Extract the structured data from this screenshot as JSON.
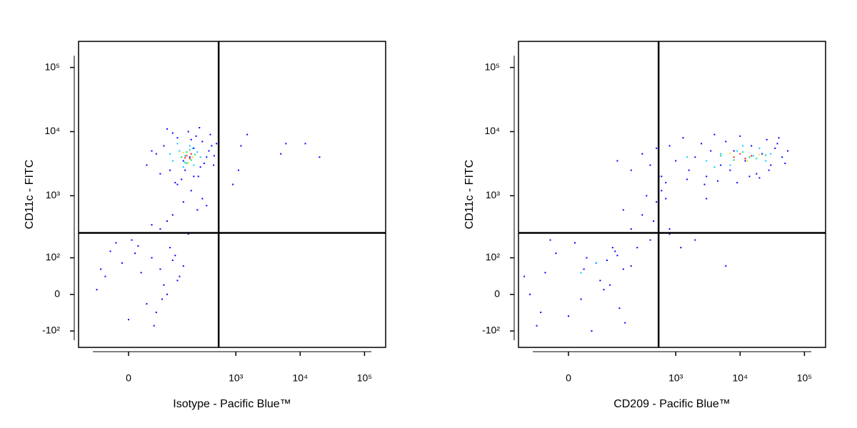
{
  "chart_data": [
    {
      "type": "scatter",
      "xlabel": "Isotype - Pacific Blue™",
      "ylabel": "CD11c - FITC",
      "xscale": "biexponential",
      "yscale": "biexponential",
      "xlim": [
        -125,
        213000
      ],
      "ylim": [
        -190,
        255000
      ],
      "xticks": [
        0,
        {
          "value": 1000,
          "label": "10³"
        },
        {
          "value": 10000,
          "label": "10⁴"
        },
        {
          "value": 100000,
          "label": "10⁵"
        }
      ],
      "yticks": [
        {
          "value": -100,
          "label": "-10²"
        },
        0,
        {
          "value": 100,
          "label": "10²"
        },
        {
          "value": 1000,
          "label": "10³"
        },
        {
          "value": 10000,
          "label": "10⁴"
        },
        {
          "value": 100000,
          "label": "10⁵"
        }
      ],
      "gates": {
        "x": 540,
        "y": 260
      },
      "series": [
        {
          "color": "#0000ff",
          "x": [
            -40,
            -10,
            10,
            30,
            60,
            90,
            120,
            -60,
            0,
            40,
            80,
            150,
            -20,
            20,
            50,
            100,
            -30,
            70,
            110,
            5,
            45,
            -50,
            130,
            15,
            65,
            60,
            100,
            150,
            200,
            250,
            80,
            300,
            120,
            180,
            220,
            40,
            350,
            30,
            50,
            70,
            90,
            120,
            150,
            180,
            220,
            260,
            300,
            350,
            400,
            450,
            500,
            60,
            100,
            140,
            200,
            280,
            380,
            80,
            160,
            240,
            320,
            420,
            40,
            110,
            190,
            270,
            460,
            1200,
            1500,
            5000,
            6000,
            12000,
            20000,
            900,
            1100
          ],
          "y": [
            40,
            80,
            120,
            -20,
            60,
            150,
            30,
            10,
            -60,
            100,
            0,
            70,
            180,
            50,
            -40,
            90,
            130,
            20,
            110,
            200,
            -80,
            60,
            40,
            160,
            -10,
            300,
            500,
            800,
            1200,
            600,
            400,
            900,
            1500,
            250,
            2000,
            350,
            700,
            3000,
            4500,
            6000,
            2500,
            8000,
            3500,
            10000,
            5500,
            2000,
            7000,
            4000,
            9000,
            3000,
            6500,
            2200,
            9500,
            1800,
            7500,
            2800,
            5000,
            11000,
            2500,
            8500,
            3200,
            6000,
            5000,
            1600,
            4000,
            11500,
            4200,
            6000,
            9000,
            4500,
            6500,
            6500,
            4000,
            1500,
            2500
          ]
        },
        {
          "color": "#00c8ff",
          "x": [
            100,
            130,
            160,
            190,
            220,
            250,
            120,
            170,
            210,
            280,
            90,
            150
          ],
          "y": [
            3500,
            5000,
            4200,
            6000,
            3000,
            4800,
            6500,
            3200,
            5500,
            4000,
            4500,
            2800
          ]
        },
        {
          "color": "#00e070",
          "x": [
            140,
            170,
            200,
            230,
            160,
            190
          ],
          "y": [
            4000,
            4800,
            3600,
            4400,
            3300,
            5200
          ]
        },
        {
          "color": "#ffe000",
          "x": [
            150,
            210,
            180
          ],
          "y": [
            4700,
            4000,
            3300
          ]
        },
        {
          "color": "#ff2000",
          "x": [
            170,
            190,
            160,
            200
          ],
          "y": [
            4200,
            3800,
            3900,
            4500
          ]
        }
      ]
    },
    {
      "type": "scatter",
      "xlabel": "CD209 - Pacific Blue™",
      "ylabel": "CD11c - FITC",
      "xscale": "biexponential",
      "yscale": "biexponential",
      "xlim": [
        -125,
        213000
      ],
      "ylim": [
        -190,
        255000
      ],
      "xticks": [
        0,
        {
          "value": 1000,
          "label": "10³"
        },
        {
          "value": 10000,
          "label": "10⁴"
        },
        {
          "value": 100000,
          "label": "10⁵"
        }
      ],
      "yticks": [
        {
          "value": -100,
          "label": "-10²"
        },
        0,
        {
          "value": 100,
          "label": "10²"
        },
        {
          "value": 1000,
          "label": "10³"
        },
        {
          "value": 10000,
          "label": "10⁴"
        },
        {
          "value": 100000,
          "label": "10⁵"
        }
      ],
      "gates": {
        "x": 540,
        "y": 260
      },
      "series": [
        {
          "color": "#0000ff",
          "x": [
            -80,
            -40,
            0,
            30,
            60,
            100,
            150,
            -60,
            -20,
            20,
            50,
            90,
            130,
            -100,
            10,
            40,
            80,
            120,
            -30,
            70,
            200,
            -50,
            25,
            110,
            160,
            200,
            300,
            400,
            500,
            600,
            250,
            350,
            450,
            150,
            550,
            700,
            800,
            120,
            200,
            300,
            400,
            500,
            600,
            800,
            1000,
            1300,
            1600,
            2000,
            2500,
            3000,
            3500,
            4000,
            5000,
            6000,
            7000,
            8000,
            10000,
            12000,
            15000,
            18000,
            22000,
            26000,
            30000,
            35000,
            40000,
            45000,
            50000,
            700,
            1500,
            2800,
            4500,
            9000,
            14000,
            20000,
            28000,
            38000,
            55000,
            1200,
            2000,
            6000,
            800,
            3000
          ],
          "y": [
            0,
            50,
            -50,
            100,
            30,
            150,
            60,
            -80,
            120,
            -10,
            80,
            20,
            -30,
            40,
            180,
            -100,
            90,
            110,
            200,
            10,
            70,
            -40,
            60,
            130,
            -70,
            300,
            500,
            200,
            800,
            1200,
            150,
            1000,
            400,
            600,
            2000,
            900,
            250,
            3500,
            2500,
            4500,
            3000,
            5500,
            2000,
            6000,
            3500,
            8000,
            2500,
            4000,
            6500,
            2000,
            5000,
            9000,
            3000,
            7000,
            2500,
            5000,
            8500,
            3500,
            6000,
            2200,
            4500,
            7500,
            3000,
            5500,
            8000,
            4000,
            3200,
            1600,
            1800,
            1500,
            1700,
            1600,
            2000,
            1900,
            2500,
            6500,
            5000,
            150,
            200,
            70,
            300,
            900
          ]
        },
        {
          "color": "#00c8ff",
          "x": [
            1500,
            3000,
            5000,
            7000,
            9000,
            12000,
            16000,
            20000,
            25000,
            4000,
            11000,
            30000,
            20,
            50
          ],
          "y": [
            4000,
            3500,
            4500,
            3000,
            5000,
            3800,
            4200,
            5500,
            3500,
            2800,
            6000,
            4500,
            50,
            80
          ]
        },
        {
          "color": "#00e070",
          "x": [
            5000,
            8000,
            11000,
            14000,
            18000,
            25000
          ],
          "y": [
            4200,
            3600,
            4800,
            4000,
            3800,
            4300
          ]
        },
        {
          "color": "#ffe000",
          "x": [
            7000,
            13000,
            20000
          ],
          "y": [
            4600,
            3500,
            4400
          ]
        },
        {
          "color": "#ff2000",
          "x": [
            8000,
            10000,
            12000,
            15000
          ],
          "y": [
            4000,
            4500,
            3800,
            4200
          ]
        }
      ]
    }
  ]
}
